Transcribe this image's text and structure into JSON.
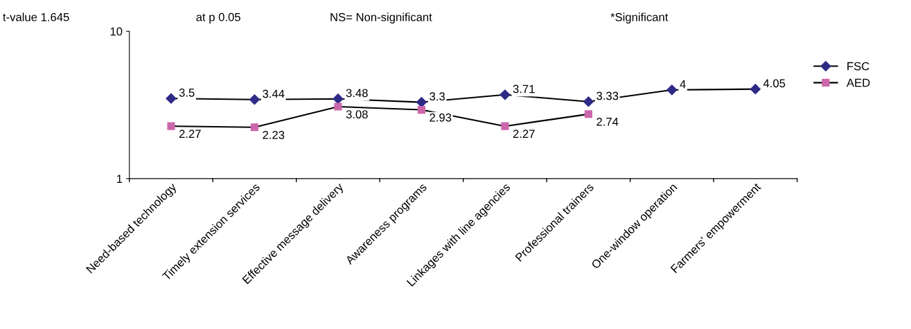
{
  "chart_data": {
    "type": "line",
    "categories": [
      "Need-based technology",
      "Timely extension services",
      "Effective message delivery",
      "Awareness programs",
      "Linkages with line agencies",
      "Professional trainers",
      "One-window operation",
      "Farmers' empowerment"
    ],
    "series": [
      {
        "name": "FSC",
        "color": "#2e2a86",
        "marker": "diamond",
        "values": [
          3.5,
          3.44,
          3.48,
          3.3,
          3.71,
          3.33,
          4,
          4.05
        ]
      },
      {
        "name": "AED",
        "color": "#cc66aa",
        "marker": "square",
        "values": [
          2.27,
          2.23,
          3.08,
          2.93,
          2.27,
          2.74,
          null,
          null
        ]
      }
    ],
    "log": true,
    "ylim": [
      1,
      10
    ],
    "yticks": [
      1,
      10
    ],
    "grid": false,
    "legend": "right",
    "data_labels": true,
    "annotations": [
      "t-value 1.645",
      "at p 0.05",
      "NS= Non-significant",
      "*Significant"
    ]
  }
}
